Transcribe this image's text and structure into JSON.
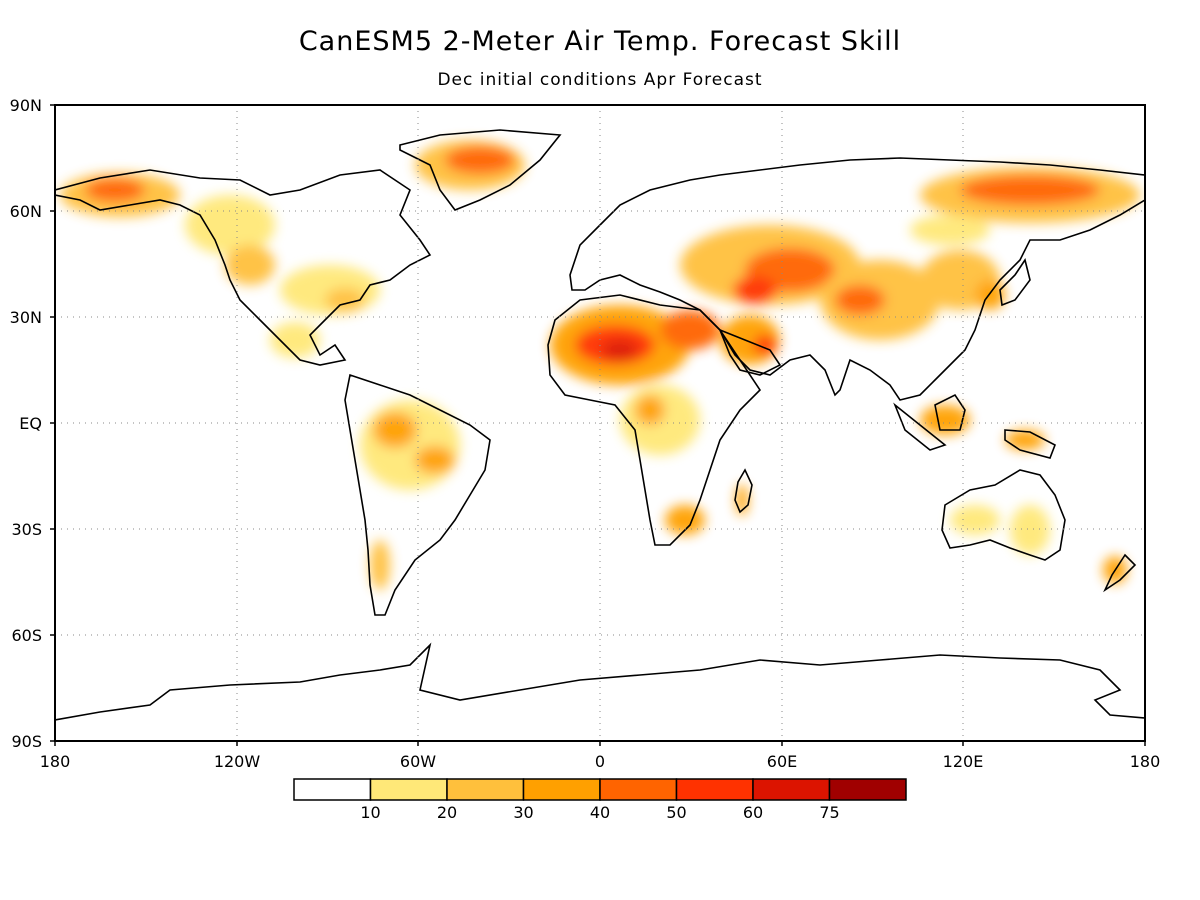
{
  "title": "CanESM5 2-Meter Air Temp. Forecast Skill",
  "subtitle": "Dec initial conditions   Apr Forecast",
  "map": {
    "lat_labels": [
      "90N",
      "60N",
      "30N",
      "EQ",
      "30S",
      "60S",
      "90S"
    ],
    "lon_labels": [
      "180",
      "120W",
      "60W",
      "0",
      "60E",
      "120E",
      "180"
    ],
    "gridlines": "dotted"
  },
  "colorbar": {
    "bins": [
      {
        "color": "#ffffff"
      },
      {
        "color": "#ffe878"
      },
      {
        "color": "#ffc03c"
      },
      {
        "color": "#ffa000"
      },
      {
        "color": "#ff6400"
      },
      {
        "color": "#ff3200"
      },
      {
        "color": "#dc1400"
      },
      {
        "color": "#a00000"
      }
    ],
    "labels": [
      "10",
      "20",
      "30",
      "40",
      "50",
      "60",
      "75"
    ]
  }
}
